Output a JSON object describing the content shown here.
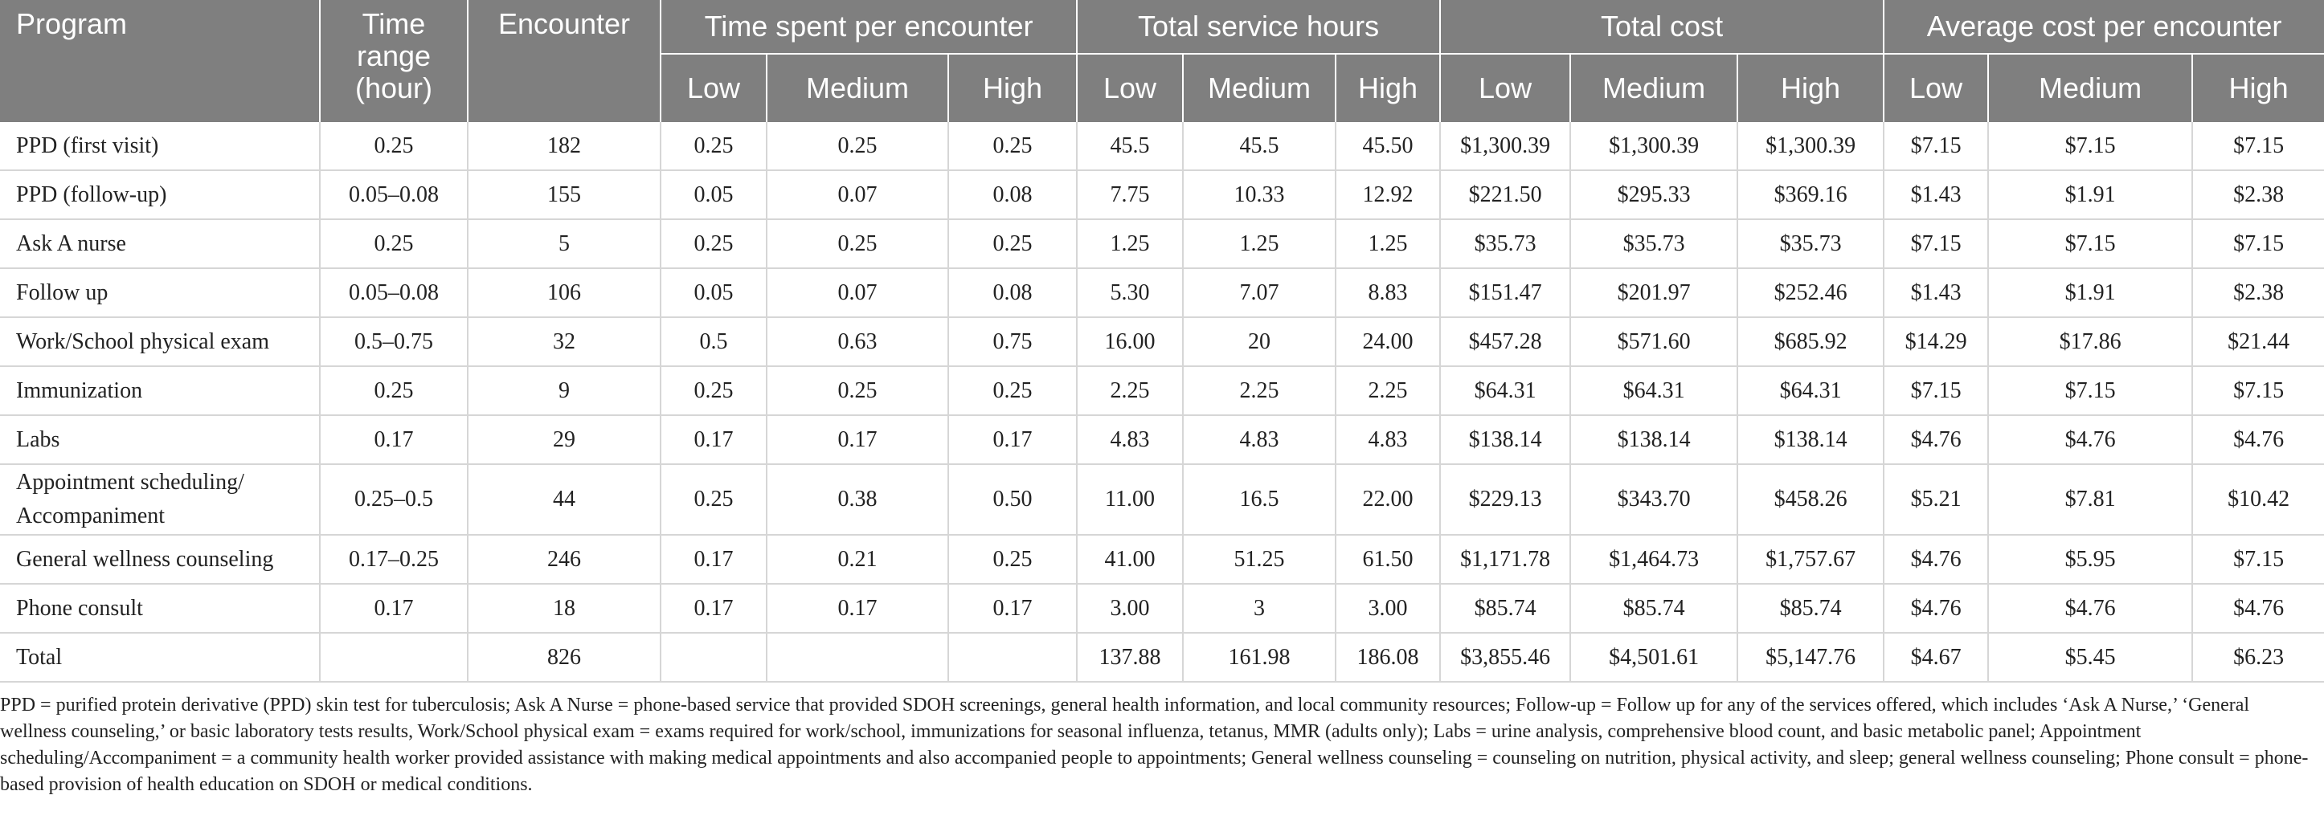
{
  "headers": {
    "program": "Program",
    "time_range": "Time range (hour)",
    "encounter": "Encounter",
    "time_spent": "Time spent per encounter",
    "total_hours": "Total service hours",
    "total_cost": "Total cost",
    "avg_cost": "Average cost per encounter",
    "low": "Low",
    "medium": "Medium",
    "high": "High"
  },
  "rows": [
    {
      "program": "PPD (first visit)",
      "time_range": "0.25",
      "encounter": "182",
      "ts_low": "0.25",
      "ts_med": "0.25",
      "ts_high": "0.25",
      "h_low": "45.5",
      "h_med": "45.5",
      "h_high": "45.50",
      "c_low": "$1,300.39",
      "c_med": "$1,300.39",
      "c_high": "$1,300.39",
      "a_low": "$7.15",
      "a_med": "$7.15",
      "a_high": "$7.15"
    },
    {
      "program": "PPD (follow-up)",
      "time_range": "0.05–0.08",
      "encounter": "155",
      "ts_low": "0.05",
      "ts_med": "0.07",
      "ts_high": "0.08",
      "h_low": "7.75",
      "h_med": "10.33",
      "h_high": "12.92",
      "c_low": "$221.50",
      "c_med": "$295.33",
      "c_high": "$369.16",
      "a_low": "$1.43",
      "a_med": "$1.91",
      "a_high": "$2.38"
    },
    {
      "program": "Ask A nurse",
      "time_range": "0.25",
      "encounter": "5",
      "ts_low": "0.25",
      "ts_med": "0.25",
      "ts_high": "0.25",
      "h_low": "1.25",
      "h_med": "1.25",
      "h_high": "1.25",
      "c_low": "$35.73",
      "c_med": "$35.73",
      "c_high": "$35.73",
      "a_low": "$7.15",
      "a_med": "$7.15",
      "a_high": "$7.15"
    },
    {
      "program": "Follow up",
      "time_range": "0.05–0.08",
      "encounter": "106",
      "ts_low": "0.05",
      "ts_med": "0.07",
      "ts_high": "0.08",
      "h_low": "5.30",
      "h_med": "7.07",
      "h_high": "8.83",
      "c_low": "$151.47",
      "c_med": "$201.97",
      "c_high": "$252.46",
      "a_low": "$1.43",
      "a_med": "$1.91",
      "a_high": "$2.38"
    },
    {
      "program": "Work/School physical exam",
      "time_range": "0.5–0.75",
      "encounter": "32",
      "ts_low": "0.5",
      "ts_med": "0.63",
      "ts_high": "0.75",
      "h_low": "16.00",
      "h_med": "20",
      "h_high": "24.00",
      "c_low": "$457.28",
      "c_med": "$571.60",
      "c_high": "$685.92",
      "a_low": "$14.29",
      "a_med": "$17.86",
      "a_high": "$21.44"
    },
    {
      "program": "Immunization",
      "time_range": "0.25",
      "encounter": "9",
      "ts_low": "0.25",
      "ts_med": "0.25",
      "ts_high": "0.25",
      "h_low": "2.25",
      "h_med": "2.25",
      "h_high": "2.25",
      "c_low": "$64.31",
      "c_med": "$64.31",
      "c_high": "$64.31",
      "a_low": "$7.15",
      "a_med": "$7.15",
      "a_high": "$7.15"
    },
    {
      "program": "Labs",
      "time_range": "0.17",
      "encounter": "29",
      "ts_low": "0.17",
      "ts_med": "0.17",
      "ts_high": "0.17",
      "h_low": "4.83",
      "h_med": "4.83",
      "h_high": "4.83",
      "c_low": "$138.14",
      "c_med": "$138.14",
      "c_high": "$138.14",
      "a_low": "$4.76",
      "a_med": "$4.76",
      "a_high": "$4.76"
    },
    {
      "program": "Appointment scheduling/ Accompaniment",
      "time_range": "0.25–0.5",
      "encounter": "44",
      "ts_low": "0.25",
      "ts_med": "0.38",
      "ts_high": "0.50",
      "h_low": "11.00",
      "h_med": "16.5",
      "h_high": "22.00",
      "c_low": "$229.13",
      "c_med": "$343.70",
      "c_high": "$458.26",
      "a_low": "$5.21",
      "a_med": "$7.81",
      "a_high": "$10.42"
    },
    {
      "program": "General wellness counseling",
      "time_range": "0.17–0.25",
      "encounter": "246",
      "ts_low": "0.17",
      "ts_med": "0.21",
      "ts_high": "0.25",
      "h_low": "41.00",
      "h_med": "51.25",
      "h_high": "61.50",
      "c_low": "$1,171.78",
      "c_med": "$1,464.73",
      "c_high": "$1,757.67",
      "a_low": "$4.76",
      "a_med": "$5.95",
      "a_high": "$7.15"
    },
    {
      "program": "Phone consult",
      "time_range": "0.17",
      "encounter": "18",
      "ts_low": "0.17",
      "ts_med": "0.17",
      "ts_high": "0.17",
      "h_low": "3.00",
      "h_med": "3",
      "h_high": "3.00",
      "c_low": "$85.74",
      "c_med": "$85.74",
      "c_high": "$85.74",
      "a_low": "$4.76",
      "a_med": "$4.76",
      "a_high": "$4.76"
    },
    {
      "program": "Total",
      "time_range": "",
      "encounter": "826",
      "ts_low": "",
      "ts_med": "",
      "ts_high": "",
      "h_low": "137.88",
      "h_med": "161.98",
      "h_high": "186.08",
      "c_low": "$3,855.46",
      "c_med": "$4,501.61",
      "c_high": "$5,147.76",
      "a_low": "$4.67",
      "a_med": "$5.45",
      "a_high": "$6.23"
    }
  ],
  "footnote": "PPD = purified protein derivative (PPD) skin test for tuberculosis; Ask A Nurse = phone-based service that provided SDOH screenings, general health information, and local community resources; Follow-up = Follow up for any of the services offered, which includes ‘Ask A Nurse,’ ‘General wellness counseling,’ or basic laboratory tests results, Work/School physical exam = exams required for work/school, immunizations for seasonal influenza, tetanus, MMR (adults only); Labs = urine analysis, comprehensive blood count, and basic metabolic panel; Appointment scheduling/Accompaniment = a community health worker provided assistance with making medical appointments and also accompanied people to appointments; General wellness counseling = counseling on nutrition, physical activity, and sleep; general wellness counseling; Phone consult = phone-based provision of health education on SDOH or medical conditions."
}
